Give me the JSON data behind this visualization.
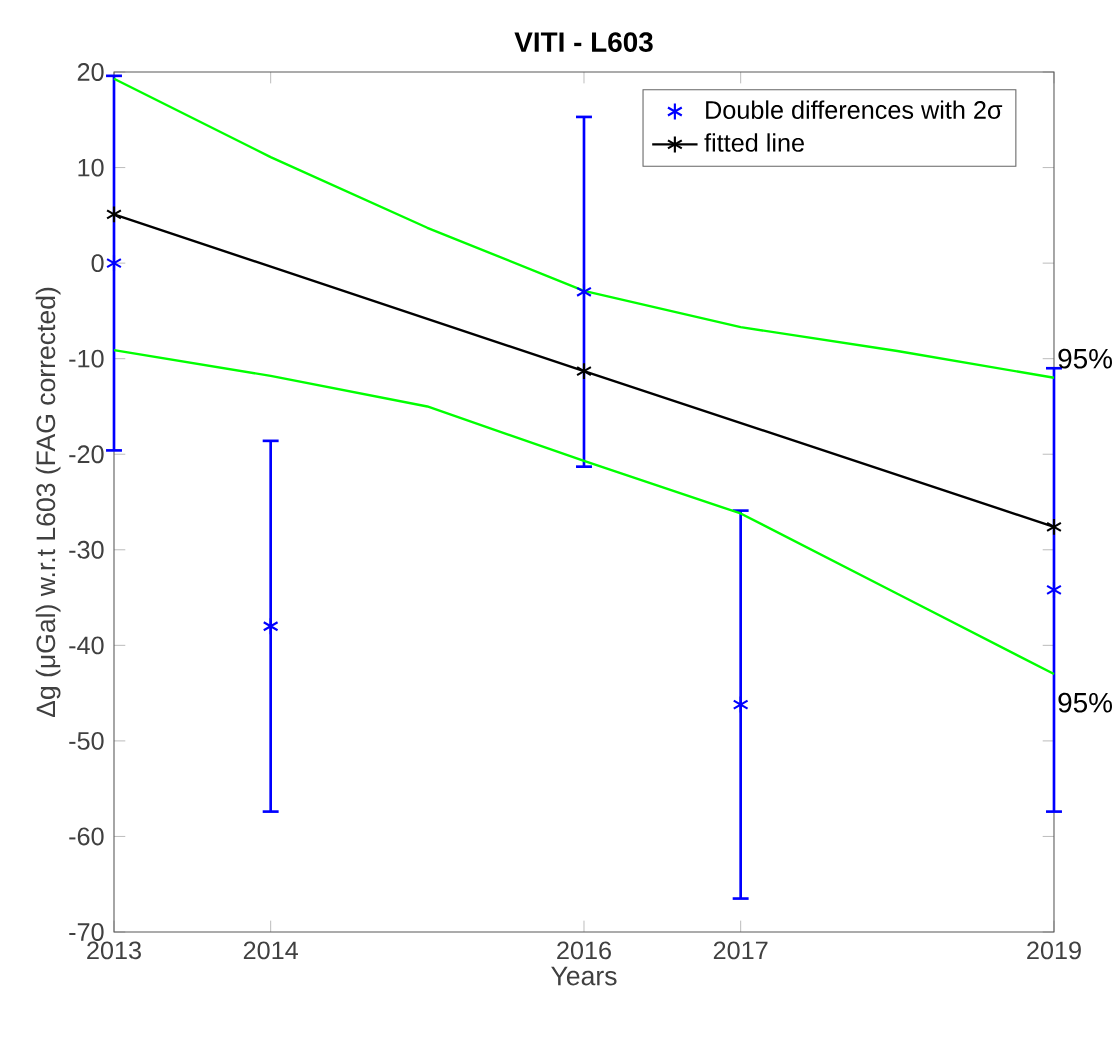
{
  "chart_data": {
    "type": "scatter",
    "title": "VITI - L603",
    "xlabel": "Years",
    "ylabel": "Δg (μGal) w.r.t L603 (FAG corrected)",
    "xlim": [
      2013,
      2019
    ],
    "xticks": [
      2013,
      2014,
      2016,
      2017,
      2019
    ],
    "ylim": [
      -70,
      20
    ],
    "yticks": [
      -70,
      -60,
      -50,
      -40,
      -30,
      -20,
      -10,
      0,
      10,
      20
    ],
    "grid": false,
    "legend": "top right",
    "series": [
      {
        "name": "Double differences with 2σ",
        "color": "#0000ff",
        "marker": "cross",
        "x": [
          2013,
          2014,
          2016,
          2017,
          2019
        ],
        "values": [
          0,
          -38.0,
          -3.0,
          -46.2,
          -34.2
        ],
        "errors": [
          19.6,
          19.4,
          18.3,
          20.3,
          23.2
        ]
      },
      {
        "name": "fitted line",
        "type": "line",
        "color": "#000000",
        "marker": "cross",
        "x": [
          2013,
          2016,
          2019
        ],
        "values": [
          5.1,
          -11.3,
          -27.6
        ]
      },
      {
        "type": "line",
        "color": "#00ff00",
        "marker": "none",
        "x": [
          2013,
          2014,
          2015,
          2016,
          2017,
          2018,
          2019
        ],
        "values": [
          19.3,
          11.1,
          3.7,
          -2.9,
          -6.7,
          -9.2,
          -12.0
        ]
      },
      {
        "type": "line",
        "color": "#00ff00",
        "marker": "none",
        "x": [
          2013,
          2014,
          2015,
          2016,
          2017,
          2018,
          2019
        ],
        "values": [
          -9.1,
          -11.8,
          -15.0,
          -20.7,
          -26.2,
          -34.6,
          -43.0
        ]
      }
    ],
    "annotations": [
      {
        "text": "95%",
        "x": 2019,
        "y": -10
      },
      {
        "text": "95%",
        "x": 2019,
        "y": -46
      }
    ]
  }
}
